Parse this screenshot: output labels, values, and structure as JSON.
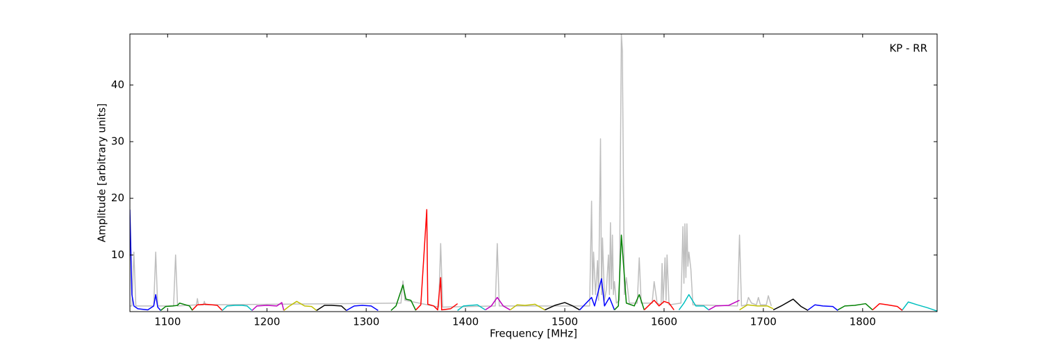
{
  "chart_data": {
    "type": "line",
    "xlabel": "Frequency [MHz]",
    "ylabel": "Amplitude [arbitrary units]",
    "annotation": "KP - RR",
    "xlim": [
      1062,
      1875
    ],
    "ylim": [
      0,
      49
    ],
    "xticks": [
      1100,
      1200,
      1300,
      1400,
      1500,
      1600,
      1700,
      1800
    ],
    "yticks": [
      10,
      20,
      30,
      40
    ],
    "series": [
      {
        "color": "#bebebe",
        "x": [
          1062,
          1064,
          1066,
          1068,
          1086,
          1088,
          1090,
          1106,
          1108,
          1110,
          1129,
          1130,
          1131,
          1136,
          1137,
          1138,
          1335,
          1337,
          1339,
          1373,
          1375,
          1377,
          1430,
          1432,
          1434,
          1525,
          1527,
          1528,
          1529,
          1531,
          1533,
          1534,
          1536,
          1537,
          1538,
          1540,
          1542,
          1544,
          1545,
          1546,
          1547,
          1548,
          1549,
          1550,
          1552,
          1555,
          1557,
          1558,
          1560,
          1562,
          1565,
          1573,
          1575,
          1577,
          1588,
          1590,
          1593,
          1597,
          1598,
          1599,
          1601,
          1602,
          1603,
          1605,
          1617,
          1619,
          1620,
          1621,
          1622,
          1623,
          1624,
          1625,
          1627,
          1629,
          1674,
          1676,
          1678,
          1683,
          1685,
          1688,
          1693,
          1695,
          1697,
          1703,
          1705,
          1708
        ],
        "values": [
          1,
          1,
          10.5,
          1,
          1,
          10.5,
          1,
          1,
          10,
          1,
          1.2,
          2.3,
          1.2,
          1.2,
          1.8,
          1.2,
          1.5,
          5.4,
          2,
          0.8,
          12,
          0.8,
          1,
          12,
          1,
          1,
          19.5,
          3,
          10.5,
          3,
          9,
          2,
          30.5,
          3,
          13,
          2,
          4,
          10,
          3,
          15.7,
          4,
          13.5,
          3,
          5.3,
          1.5,
          2,
          49,
          46,
          3,
          6,
          1.5,
          1.5,
          9.5,
          1.5,
          1.5,
          5.3,
          1.5,
          1.2,
          8.5,
          1.5,
          9.5,
          2,
          10,
          1.2,
          1.5,
          15,
          5,
          15.5,
          6,
          15.5,
          8,
          10.5,
          7.5,
          1.2,
          1,
          13.5,
          1,
          1.2,
          2.5,
          1.5,
          1.2,
          2.5,
          1.2,
          1.2,
          2.8,
          1
        ]
      },
      {
        "color": "#0000ff",
        "x": [
          1062,
          1064,
          1066,
          1070,
          1080,
          1086,
          1088,
          1090,
          1093
        ],
        "values": [
          18,
          3,
          1,
          0.5,
          0.3,
          1,
          3,
          0.8,
          0.2
        ]
      },
      {
        "color": "#008000",
        "x": [
          1093,
          1098,
          1105,
          1110,
          1112,
          1118,
          1122,
          1125
        ],
        "values": [
          0.2,
          0.9,
          1,
          1.1,
          1.5,
          1.2,
          1,
          0.2
        ]
      },
      {
        "color": "#ff0000",
        "x": [
          1125,
          1130,
          1138,
          1145,
          1150,
          1155
        ],
        "values": [
          0.3,
          1.2,
          1.3,
          1.2,
          1.1,
          0.2
        ]
      },
      {
        "color": "#00bfbf",
        "x": [
          1155,
          1160,
          1168,
          1175,
          1180,
          1185
        ],
        "values": [
          0.2,
          1,
          1.1,
          1.1,
          1,
          0.2
        ]
      },
      {
        "color": "#bf00bf",
        "x": [
          1185,
          1190,
          1200,
          1210,
          1215,
          1217
        ],
        "values": [
          0.2,
          1,
          1.1,
          1,
          1.6,
          0.2
        ]
      },
      {
        "color": "#bfbf00",
        "x": [
          1217,
          1222,
          1230,
          1238,
          1245,
          1250
        ],
        "values": [
          0.2,
          0.9,
          1.8,
          1,
          0.9,
          0.2
        ]
      },
      {
        "color": "#000000",
        "x": [
          1250,
          1258,
          1265,
          1275,
          1280
        ],
        "values": [
          0.2,
          1.1,
          1.1,
          1,
          0.2
        ]
      },
      {
        "color": "#0000ff",
        "x": [
          1280,
          1288,
          1296,
          1305,
          1312
        ],
        "values": [
          0.2,
          1,
          1.1,
          1,
          0.2
        ]
      },
      {
        "color": "#008000",
        "x": [
          1325,
          1330,
          1337,
          1340,
          1345,
          1350
        ],
        "values": [
          0.2,
          1,
          4.7,
          2.2,
          2,
          0.2
        ]
      },
      {
        "color": "#ff0000",
        "x": [
          1350,
          1355,
          1361,
          1362,
          1368,
          1372,
          1375,
          1376,
          1385,
          1392
        ],
        "values": [
          0.3,
          1.2,
          18,
          1.3,
          1,
          0.3,
          6,
          0.3,
          0.5,
          1.4
        ]
      },
      {
        "color": "#00bfbf",
        "x": [
          1392,
          1398,
          1405,
          1412,
          1420
        ],
        "values": [
          0.2,
          1,
          1.1,
          1.2,
          0.3
        ]
      },
      {
        "color": "#bf00bf",
        "x": [
          1420,
          1426,
          1432,
          1438,
          1445
        ],
        "values": [
          0.3,
          1,
          2.5,
          1,
          0.3
        ]
      },
      {
        "color": "#bfbf00",
        "x": [
          1445,
          1452,
          1460,
          1470,
          1480
        ],
        "values": [
          0.3,
          1.2,
          1.1,
          1.3,
          0.3
        ]
      },
      {
        "color": "#000000",
        "x": [
          1480,
          1490,
          1500,
          1508,
          1515
        ],
        "values": [
          0.3,
          1.1,
          1.6,
          1,
          0.3
        ]
      },
      {
        "color": "#0000ff",
        "x": [
          1515,
          1527,
          1530,
          1537,
          1540,
          1545,
          1550
        ],
        "values": [
          0.3,
          2.5,
          1,
          5.8,
          1,
          2.5,
          0.3
        ]
      },
      {
        "color": "#008000",
        "x": [
          1550,
          1554,
          1557,
          1562,
          1570,
          1575,
          1580
        ],
        "values": [
          0.3,
          1,
          13.5,
          1.5,
          1,
          3,
          0.3
        ]
      },
      {
        "color": "#ff0000",
        "x": [
          1580,
          1590,
          1595,
          1600,
          1605,
          1610
        ],
        "values": [
          0.3,
          2,
          1,
          1.8,
          1.5,
          0.3
        ]
      },
      {
        "color": "#00bfbf",
        "x": [
          1615,
          1620,
          1625,
          1632,
          1640,
          1645
        ],
        "values": [
          0.3,
          1.5,
          3,
          1,
          1,
          0.3
        ]
      },
      {
        "color": "#bf00bf",
        "x": [
          1645,
          1652,
          1665,
          1676
        ],
        "values": [
          0.3,
          1,
          1.1,
          2
        ]
      },
      {
        "color": "#bfbf00",
        "x": [
          1676,
          1684,
          1694,
          1704,
          1710
        ],
        "values": [
          0.3,
          1.2,
          1,
          1,
          0.5
        ]
      },
      {
        "color": "#000000",
        "x": [
          1710,
          1718,
          1730,
          1738,
          1745
        ],
        "values": [
          0.3,
          1,
          2.2,
          0.9,
          0.2
        ]
      },
      {
        "color": "#0000ff",
        "x": [
          1745,
          1752,
          1760,
          1770,
          1775
        ],
        "values": [
          0.3,
          1.2,
          1,
          0.9,
          0.2
        ]
      },
      {
        "color": "#008000",
        "x": [
          1775,
          1782,
          1792,
          1803,
          1810
        ],
        "values": [
          0.3,
          1,
          1.1,
          1.4,
          0.3
        ]
      },
      {
        "color": "#ff0000",
        "x": [
          1810,
          1817,
          1825,
          1835,
          1840
        ],
        "values": [
          0.3,
          1.4,
          1.2,
          0.9,
          0.2
        ]
      },
      {
        "color": "#00bfbf",
        "x": [
          1840,
          1846,
          1855,
          1865,
          1875
        ],
        "values": [
          0.3,
          1.7,
          1.2,
          0.7,
          0.1
        ]
      }
    ]
  }
}
